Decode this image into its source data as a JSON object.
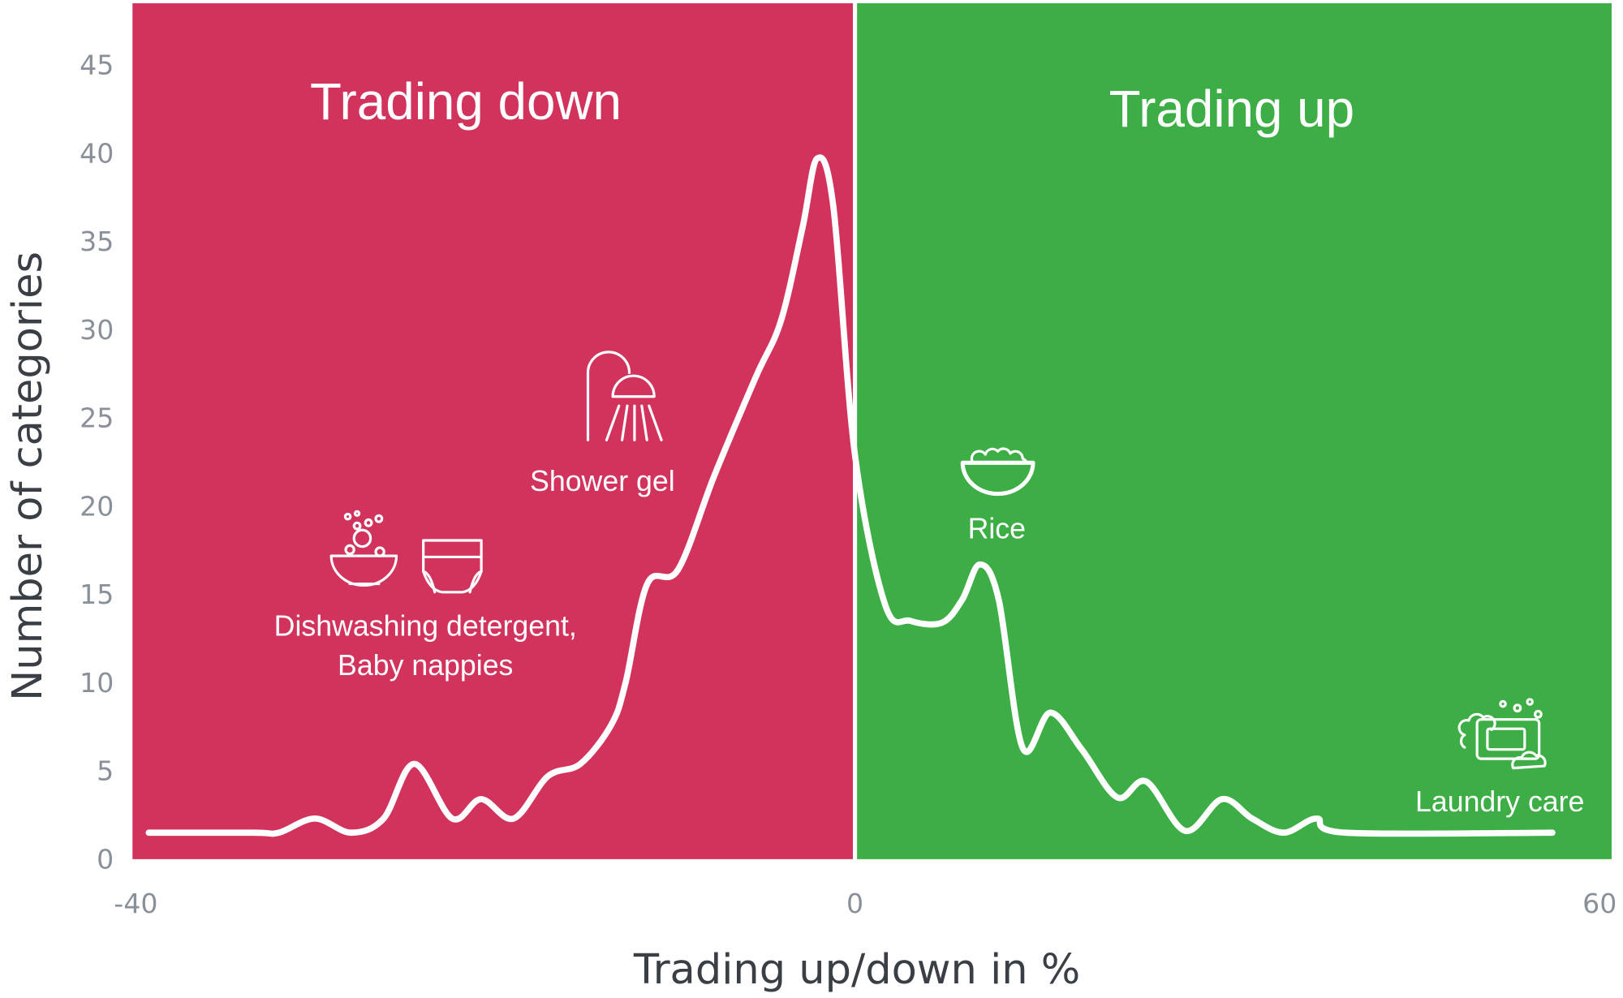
{
  "chart_data": {
    "type": "line",
    "title_left": "Trading down",
    "title_right": "Trading up",
    "x_label": "Trading up/down in %",
    "y_label": "Number of categories",
    "x": [
      -39.1,
      -33.3,
      -31.9,
      -29.9,
      -27.9,
      -26.1,
      -24.4,
      -22.3,
      -20.7,
      -18.9,
      -17.0,
      -15.2,
      -13.5,
      -12.7,
      -11.5,
      -9.8,
      -7.8,
      -5.5,
      -4.1,
      -2.9,
      -2.1,
      -1.2,
      0,
      2.4,
      4.4,
      6.9,
      8.5,
      9.9,
      11.4,
      13.3,
      15.5,
      18.0,
      20.8,
      23.1,
      26.2,
      29.1,
      31.5,
      34.0,
      36.6,
      38.9,
      55.3
    ],
    "values": [
      1.5,
      1.5,
      1.5,
      2.3,
      1.5,
      2.3,
      5.4,
      2.3,
      3.4,
      2.3,
      4.7,
      5.4,
      7.6,
      10,
      15.6,
      16.4,
      21.7,
      27.3,
      30.5,
      35.8,
      39.7,
      37,
      22.9,
      14.4,
      13.5,
      13.4,
      14.7,
      16.7,
      14.7,
      6.3,
      8.3,
      6.2,
      3.5,
      4.4,
      1.6,
      3.4,
      2.3,
      1.5,
      2.3,
      1.5,
      1.5
    ],
    "color": "#ffffff",
    "region_colors": {
      "below_zero": "#d2335c",
      "above_zero": "#3dae45"
    },
    "xlim": [
      -40,
      60
    ],
    "xticks": [
      -40,
      0,
      60
    ],
    "ylim": [
      0,
      48.5
    ],
    "yticks": [
      0,
      5,
      10,
      15,
      20,
      25,
      30,
      35,
      40,
      45
    ],
    "grid": false,
    "annotations": {
      "dishwashing": [
        "Dishwashing detergent,",
        "Baby nappies"
      ],
      "shower": "Shower gel",
      "rice": "Rice",
      "laundry": "Laundry care"
    }
  }
}
